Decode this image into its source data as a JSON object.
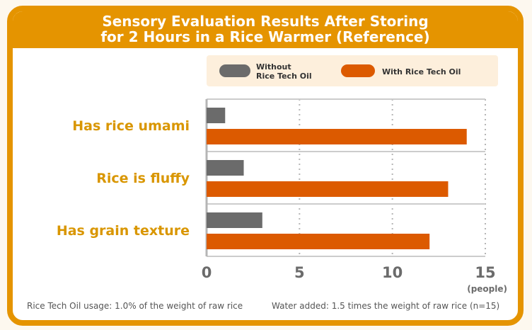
{
  "title_line1": "Sensory Evaluation Results After Storing",
  "title_line2": "for 2 Hours in a Rice Warmer (Reference)",
  "colors": {
    "frame": "#e59400",
    "without": "#6b6b6b",
    "with": "#dc5a00",
    "category_label": "#d99600",
    "legend_bg": "#fdefdc"
  },
  "chart_data": {
    "type": "bar",
    "orientation": "horizontal",
    "categories": [
      "Has rice umami",
      "Rice is fluffy",
      "Has grain texture"
    ],
    "series": [
      {
        "name": "Without Rice Tech Oil",
        "legend_lines": [
          "Without",
          "Rice Tech Oil"
        ],
        "values": [
          1,
          2,
          3
        ]
      },
      {
        "name": "With Rice Tech Oil",
        "legend_lines": [
          "With Rice Tech Oil"
        ],
        "values": [
          14,
          13,
          12
        ]
      }
    ],
    "xlim": [
      0,
      15
    ],
    "xticks": [
      "0",
      "5",
      "10",
      "15"
    ],
    "xlabel": "(people)",
    "grid": true,
    "legend_position": "top"
  },
  "footnotes": {
    "left": "Rice Tech Oil usage: 1.0% of the weight of raw rice",
    "right": "Water added: 1.5 times the weight of raw rice (n=15)"
  }
}
